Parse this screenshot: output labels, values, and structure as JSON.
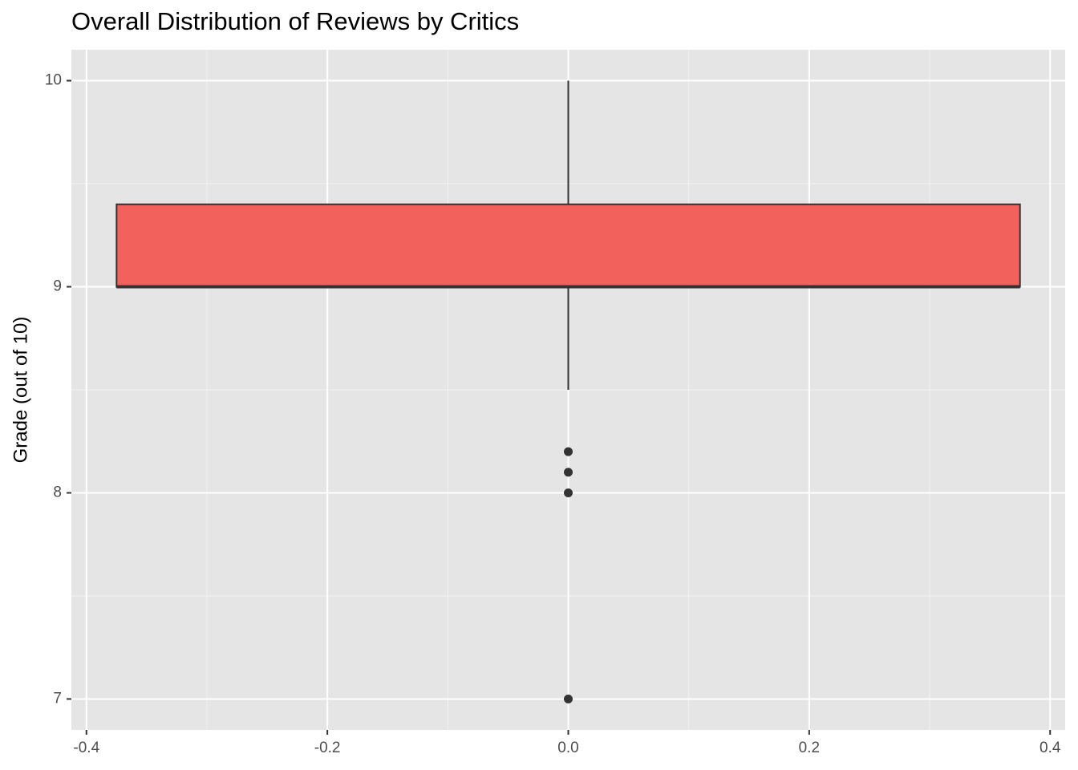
{
  "chart_data": {
    "type": "boxplot",
    "title": "Overall Distribution of Reviews by Critics",
    "y_label": "Grade (out of 10)",
    "xlim": [
      -0.4125,
      0.4125
    ],
    "xticks": [
      -0.4,
      -0.2,
      {
        "value": 0,
        "label": "0.0"
      },
      0.2,
      0.4
    ],
    "x_minor_ticks": [
      -0.3,
      -0.1,
      0.1,
      0.3
    ],
    "ylim": [
      6.85,
      10.15
    ],
    "yticks": [
      7,
      8,
      9,
      10
    ],
    "y_minor_ticks": [
      7.5,
      8.5,
      9.5
    ],
    "grid": true,
    "boxes": [
      {
        "x": 0,
        "width": 0.75,
        "color": "#f2615c",
        "whisker_low": 8.5,
        "q1": 9,
        "median": 9,
        "q3": 9.4,
        "whisker_high": 10,
        "outliers": [
          8.2,
          8.1,
          8,
          7
        ]
      }
    ]
  }
}
